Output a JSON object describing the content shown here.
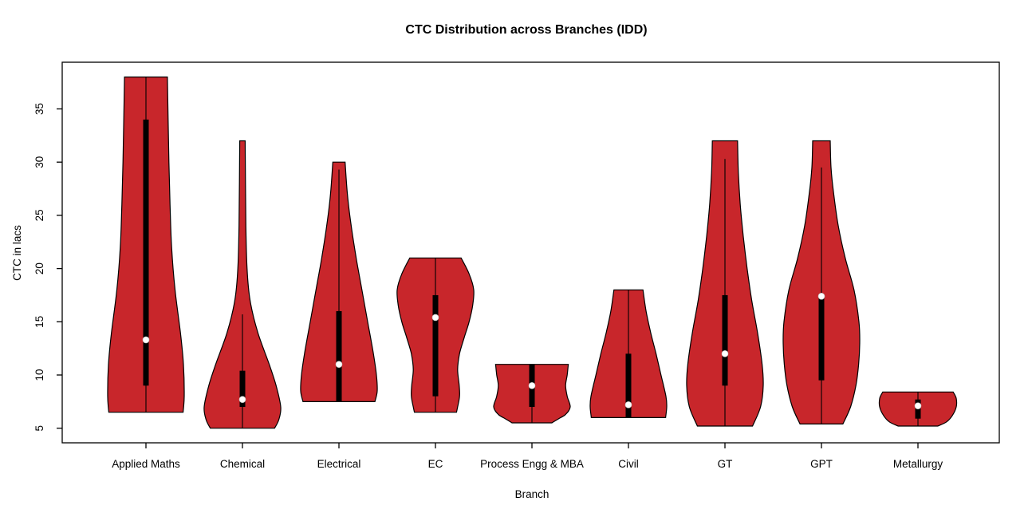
{
  "chart_data": {
    "type": "violin",
    "title": "CTC Distribution across Branches (IDD)",
    "xlabel": "Branch",
    "ylabel": "CTC in lacs",
    "categories": [
      "Applied Maths",
      "Chemical",
      "Electrical",
      "EC",
      "Process Engg & MBA",
      "Civil",
      "GT",
      "GPT",
      "Metallurgy"
    ],
    "y_ticks": [
      5,
      10,
      15,
      20,
      25,
      30,
      35
    ],
    "ylim": [
      3.6,
      39.4
    ],
    "grid": false,
    "legend": "none",
    "colors": {
      "violin_fill": "#C8262B",
      "violin_outline": "#000000",
      "box": "#000000",
      "median_dot": "#ffffff",
      "background": "#ffffff",
      "text": "#000000"
    },
    "series": [
      {
        "branch": "Applied Maths",
        "min": 6.5,
        "max": 38,
        "q1": 9,
        "median": 13.3,
        "q3": 34,
        "whisker_low": 6.5,
        "whisker_high": 38,
        "density_profile": [
          [
            38,
            0.56
          ],
          [
            34,
            0.58
          ],
          [
            30,
            0.6
          ],
          [
            26,
            0.63
          ],
          [
            22,
            0.67
          ],
          [
            18,
            0.76
          ],
          [
            14,
            0.9
          ],
          [
            11,
            0.98
          ],
          [
            8,
            1.0
          ],
          [
            6.5,
            0.97
          ]
        ]
      },
      {
        "branch": "Chemical",
        "min": 5,
        "max": 32,
        "q1": 7,
        "median": 7.7,
        "q3": 10.4,
        "whisker_low": 5,
        "whisker_high": 15.7,
        "density_profile": [
          [
            32,
            0.07
          ],
          [
            28,
            0.08
          ],
          [
            24,
            0.09
          ],
          [
            20,
            0.12
          ],
          [
            17,
            0.2
          ],
          [
            14,
            0.4
          ],
          [
            11,
            0.7
          ],
          [
            9,
            0.88
          ],
          [
            7,
            1.0
          ],
          [
            5.8,
            0.95
          ],
          [
            5,
            0.84
          ]
        ]
      },
      {
        "branch": "Electrical",
        "min": 7.5,
        "max": 30,
        "q1": 7.5,
        "median": 11,
        "q3": 16,
        "whisker_low": 7.5,
        "whisker_high": 29.3,
        "density_profile": [
          [
            30,
            0.16
          ],
          [
            27,
            0.22
          ],
          [
            24,
            0.32
          ],
          [
            21,
            0.45
          ],
          [
            18,
            0.6
          ],
          [
            15,
            0.75
          ],
          [
            12,
            0.9
          ],
          [
            10,
            0.98
          ],
          [
            8.5,
            1.0
          ],
          [
            7.5,
            0.94
          ]
        ]
      },
      {
        "branch": "EC",
        "min": 6.5,
        "max": 21,
        "q1": 8,
        "median": 15.4,
        "q3": 17.5,
        "whisker_low": 6.5,
        "whisker_high": 21,
        "density_profile": [
          [
            21,
            0.67
          ],
          [
            19.5,
            0.88
          ],
          [
            18,
            1.0
          ],
          [
            16.5,
            0.97
          ],
          [
            15,
            0.88
          ],
          [
            13.5,
            0.75
          ],
          [
            12,
            0.63
          ],
          [
            10.5,
            0.58
          ],
          [
            9,
            0.62
          ],
          [
            8,
            0.63
          ],
          [
            7,
            0.58
          ],
          [
            6.5,
            0.55
          ]
        ]
      },
      {
        "branch": "Process Engg & MBA",
        "min": 5.5,
        "max": 11,
        "q1": 7,
        "median": 9,
        "q3": 11,
        "whisker_low": 5.5,
        "whisker_high": 11,
        "density_profile": [
          [
            11,
            0.95
          ],
          [
            10,
            0.92
          ],
          [
            9,
            0.88
          ],
          [
            8,
            0.92
          ],
          [
            7,
            1.0
          ],
          [
            6.3,
            0.88
          ],
          [
            5.9,
            0.7
          ],
          [
            5.5,
            0.52
          ]
        ]
      },
      {
        "branch": "Civil",
        "min": 6,
        "max": 18,
        "q1": 6,
        "median": 7.2,
        "q3": 12,
        "whisker_low": 6,
        "whisker_high": 18,
        "density_profile": [
          [
            18,
            0.38
          ],
          [
            16,
            0.46
          ],
          [
            14,
            0.58
          ],
          [
            12,
            0.72
          ],
          [
            10,
            0.85
          ],
          [
            8,
            0.98
          ],
          [
            7,
            1.0
          ],
          [
            6,
            0.97
          ]
        ]
      },
      {
        "branch": "GT",
        "min": 5.2,
        "max": 32,
        "q1": 9,
        "median": 12,
        "q3": 17.5,
        "whisker_low": 5.2,
        "whisker_high": 30.3,
        "density_profile": [
          [
            32,
            0.33
          ],
          [
            29,
            0.35
          ],
          [
            26,
            0.4
          ],
          [
            23,
            0.48
          ],
          [
            20,
            0.58
          ],
          [
            17,
            0.7
          ],
          [
            14,
            0.85
          ],
          [
            11,
            0.97
          ],
          [
            9,
            1.0
          ],
          [
            7,
            0.93
          ],
          [
            5.2,
            0.72
          ]
        ]
      },
      {
        "branch": "GPT",
        "min": 5.4,
        "max": 32,
        "q1": 9.5,
        "median": 17.4,
        "q3": 17.4,
        "whisker_low": 5.4,
        "whisker_high": 29.5,
        "density_profile": [
          [
            32,
            0.23
          ],
          [
            29.5,
            0.25
          ],
          [
            27,
            0.32
          ],
          [
            24,
            0.44
          ],
          [
            21,
            0.62
          ],
          [
            18,
            0.85
          ],
          [
            15,
            0.98
          ],
          [
            13,
            1.0
          ],
          [
            11,
            0.97
          ],
          [
            9,
            0.9
          ],
          [
            7,
            0.76
          ],
          [
            5.4,
            0.56
          ]
        ]
      },
      {
        "branch": "Metallurgy",
        "min": 5.2,
        "max": 8.4,
        "q1": 5.9,
        "median": 7.1,
        "q3": 7.7,
        "whisker_low": 5.2,
        "whisker_high": 8.4,
        "density_profile": [
          [
            8.4,
            0.92
          ],
          [
            7.8,
            1.0
          ],
          [
            7,
            1.0
          ],
          [
            6.2,
            0.9
          ],
          [
            5.6,
            0.75
          ],
          [
            5.2,
            0.52
          ]
        ]
      }
    ]
  }
}
